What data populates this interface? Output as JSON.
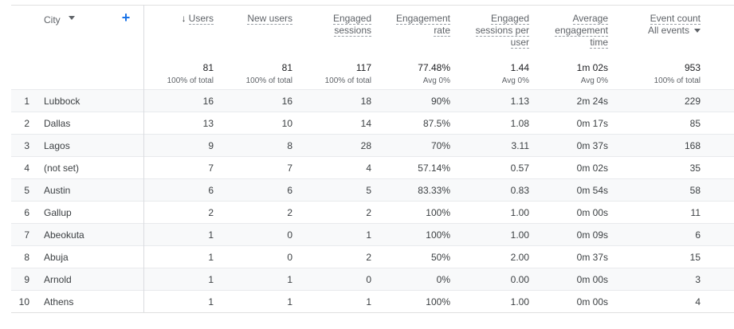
{
  "header": {
    "dimension_label": "City",
    "columns": [
      {
        "key": "users",
        "label": "Users",
        "sorted": true
      },
      {
        "key": "new_users",
        "label": "New users"
      },
      {
        "key": "engaged",
        "label_lines": [
          "Engaged",
          "sessions"
        ]
      },
      {
        "key": "eng_rate",
        "label_lines": [
          "Engagement",
          "rate"
        ]
      },
      {
        "key": "eng_per_user",
        "label_lines": [
          "Engaged",
          "sessions per",
          "user"
        ]
      },
      {
        "key": "avg_time",
        "label_lines": [
          "Average",
          "engagement",
          "time"
        ]
      },
      {
        "key": "events",
        "label": "Event count",
        "sublabel": "All events"
      }
    ]
  },
  "totals": [
    {
      "value": "81",
      "sub": "100% of total"
    },
    {
      "value": "81",
      "sub": "100% of total"
    },
    {
      "value": "117",
      "sub": "100% of total"
    },
    {
      "value": "77.48%",
      "sub": "Avg 0%"
    },
    {
      "value": "1.44",
      "sub": "Avg 0%"
    },
    {
      "value": "1m 02s",
      "sub": "Avg 0%"
    },
    {
      "value": "953",
      "sub": "100% of total"
    }
  ],
  "rows": [
    {
      "idx": "1",
      "city": "Lubbock",
      "users": "16",
      "new_users": "16",
      "engaged": "18",
      "eng_rate": "90%",
      "eng_per_user": "1.13",
      "avg_time": "2m 24s",
      "events": "229"
    },
    {
      "idx": "2",
      "city": "Dallas",
      "users": "13",
      "new_users": "10",
      "engaged": "14",
      "eng_rate": "87.5%",
      "eng_per_user": "1.08",
      "avg_time": "0m 17s",
      "events": "85"
    },
    {
      "idx": "3",
      "city": "Lagos",
      "users": "9",
      "new_users": "8",
      "engaged": "28",
      "eng_rate": "70%",
      "eng_per_user": "3.11",
      "avg_time": "0m 37s",
      "events": "168"
    },
    {
      "idx": "4",
      "city": "(not set)",
      "users": "7",
      "new_users": "7",
      "engaged": "4",
      "eng_rate": "57.14%",
      "eng_per_user": "0.57",
      "avg_time": "0m 02s",
      "events": "35"
    },
    {
      "idx": "5",
      "city": "Austin",
      "users": "6",
      "new_users": "6",
      "engaged": "5",
      "eng_rate": "83.33%",
      "eng_per_user": "0.83",
      "avg_time": "0m 54s",
      "events": "58"
    },
    {
      "idx": "6",
      "city": "Gallup",
      "users": "2",
      "new_users": "2",
      "engaged": "2",
      "eng_rate": "100%",
      "eng_per_user": "1.00",
      "avg_time": "0m 00s",
      "events": "11"
    },
    {
      "idx": "7",
      "city": "Abeokuta",
      "users": "1",
      "new_users": "0",
      "engaged": "1",
      "eng_rate": "100%",
      "eng_per_user": "1.00",
      "avg_time": "0m 09s",
      "events": "6"
    },
    {
      "idx": "8",
      "city": "Abuja",
      "users": "1",
      "new_users": "0",
      "engaged": "2",
      "eng_rate": "50%",
      "eng_per_user": "2.00",
      "avg_time": "0m 37s",
      "events": "15"
    },
    {
      "idx": "9",
      "city": "Arnold",
      "users": "1",
      "new_users": "1",
      "engaged": "0",
      "eng_rate": "0%",
      "eng_per_user": "0.00",
      "avg_time": "0m 00s",
      "events": "3"
    },
    {
      "idx": "10",
      "city": "Athens",
      "users": "1",
      "new_users": "1",
      "engaged": "1",
      "eng_rate": "100%",
      "eng_per_user": "1.00",
      "avg_time": "0m 00s",
      "events": "4"
    }
  ],
  "icons": {
    "add": "plus-icon",
    "sort": "arrow-down-icon",
    "dropdown": "caret-down-icon"
  },
  "colors": {
    "accent": "#1a73e8",
    "row_alt": "#f8f9fa",
    "border": "#e0e0e0"
  }
}
